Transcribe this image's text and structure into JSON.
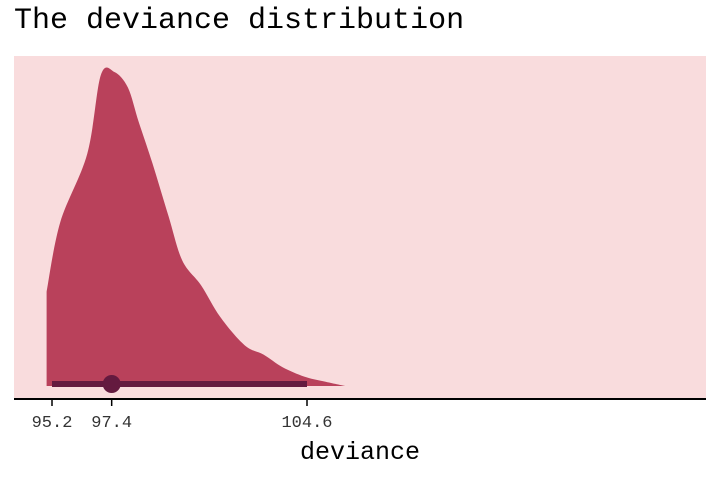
{
  "chart_data": {
    "type": "area",
    "title": "The deviance distribution",
    "xlabel": "deviance",
    "ylabel": "",
    "xlim": [
      95.0,
      106.0
    ],
    "x_ticks": [
      95.2,
      97.4,
      104.6
    ],
    "x_tick_labels": [
      "95.2",
      "97.4",
      "104.6"
    ],
    "grid": false,
    "legend": "none",
    "colors": {
      "panel_background": "#f9dcdd",
      "density_fill": "#b9415b",
      "interval": "#641a3f",
      "axis_line": "#000000"
    },
    "series": [
      {
        "x": [
          95.0,
          95.5,
          96.5,
          97.0,
          97.5,
          98.0,
          98.4,
          98.9,
          99.5,
          100.0,
          100.7,
          101.4,
          102.3,
          103.0,
          103.7,
          104.5,
          105.2,
          106.0
        ],
        "y": [
          0.3,
          0.52,
          0.74,
          0.99,
          1.0,
          0.95,
          0.84,
          0.71,
          0.54,
          0.4,
          0.32,
          0.22,
          0.13,
          0.1,
          0.06,
          0.03,
          0.015,
          0.0
        ]
      }
    ],
    "point_interval": {
      "point": 97.4,
      "lower": 95.2,
      "upper": 104.6
    }
  }
}
